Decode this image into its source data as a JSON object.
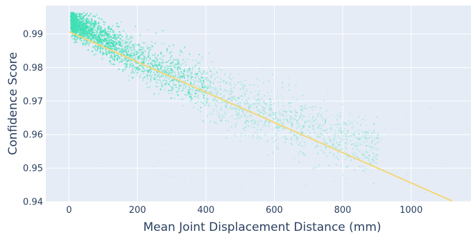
{
  "chart_data": {
    "type": "scatter",
    "title": "",
    "xlabel": "Mean Joint Displacement Distance (mm)",
    "ylabel": "Confidence Score",
    "xlim": [
      -68,
      1175
    ],
    "ylim": [
      0.94,
      0.9985
    ],
    "x_ticks": [
      0,
      200,
      400,
      600,
      800,
      1000
    ],
    "x_tick_labels": [
      "0",
      "200",
      "400",
      "600",
      "800",
      "1000"
    ],
    "y_ticks": [
      0.94,
      0.95,
      0.96,
      0.97,
      0.98,
      0.99
    ],
    "y_tick_labels": [
      "0.94",
      "0.95",
      "0.96",
      "0.97",
      "0.98",
      "0.99"
    ],
    "grid": true,
    "background_color": "#e5ecf6",
    "grid_color": "#ffffff",
    "series": [
      {
        "kind": "scatter-cloud",
        "color": "#40e0b4",
        "point_count_estimate": 20000,
        "center_trend": [
          [
            5,
            0.9935
          ],
          [
            50,
            0.9915
          ],
          [
            100,
            0.9885
          ],
          [
            200,
            0.9825
          ],
          [
            300,
            0.978
          ],
          [
            400,
            0.9735
          ],
          [
            500,
            0.969
          ],
          [
            600,
            0.965
          ],
          [
            700,
            0.962
          ],
          [
            800,
            0.959
          ]
        ],
        "x_range": [
          5,
          1120
        ],
        "y_range": [
          0.9405,
          0.9965
        ]
      },
      {
        "kind": "trend-line",
        "color": "#f3d77a",
        "x": [
          0,
          1120
        ],
        "y": [
          0.9907,
          0.9402
        ]
      }
    ]
  }
}
